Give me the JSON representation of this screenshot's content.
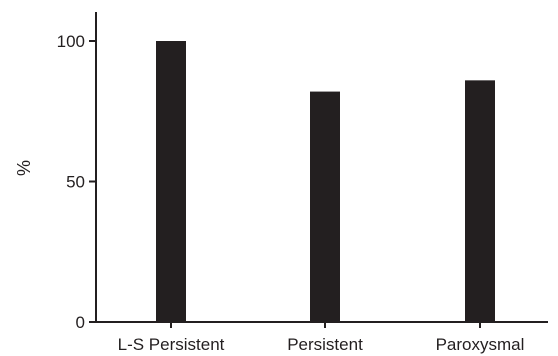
{
  "chart_data": {
    "type": "bar",
    "title": "",
    "xlabel": "",
    "ylabel": "%",
    "categories": [
      "L-S Persistent",
      "Persistent",
      "Paroxysmal"
    ],
    "values": [
      100,
      82,
      86
    ],
    "ylim": [
      0,
      100
    ],
    "yticks": [
      0,
      50,
      100
    ],
    "grid": false,
    "legend": "none",
    "bar_color": "#231f20"
  }
}
